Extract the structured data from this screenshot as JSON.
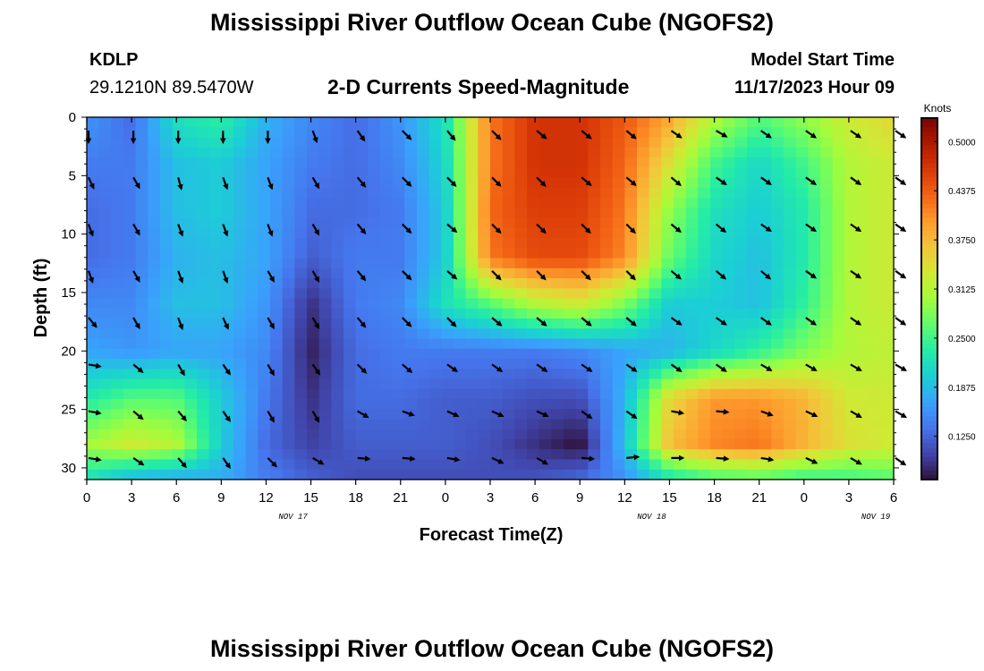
{
  "header": {
    "title": "Mississippi River Outflow Ocean Cube (NGOFS2)",
    "station": "KDLP",
    "coords": "29.1210N  89.5470W",
    "plot_title": "2-D Currents Speed-Magnitude",
    "model_start_label": "Model Start Time",
    "model_start_value": "11/17/2023 Hour 09"
  },
  "footer": {
    "title": "Mississippi River Outflow Ocean Cube (NGOFS2)"
  },
  "colors": {
    "colormap": [
      "#30123b",
      "#4145ab",
      "#4675ed",
      "#39a2fc",
      "#1bcfd4",
      "#24eca6",
      "#61fc6c",
      "#a4fc3b",
      "#d1e834",
      "#f3c63a",
      "#fe9b2d",
      "#f36315",
      "#d93806",
      "#b11901",
      "#7a0402"
    ]
  },
  "chart_data": {
    "type": "heatmap",
    "xlabel": "Forecast Time(Z)",
    "ylabel": "Depth (ft)",
    "colorbar_label": "Knots",
    "x_tick_labels": [
      "0",
      "3",
      "6",
      "9",
      "12",
      "15",
      "18",
      "21",
      "0",
      "3",
      "6",
      "9",
      "12",
      "15",
      "18",
      "21",
      "0",
      "3",
      "6"
    ],
    "x_range_hours": [
      0,
      54
    ],
    "date_labels": [
      {
        "hour": 15,
        "text": "NOV 17"
      },
      {
        "hour": 39,
        "text": "NOV 18"
      },
      {
        "hour": 54,
        "text": "NOV 19"
      }
    ],
    "ylim": [
      31,
      0
    ],
    "y_ticks": [
      0,
      5,
      10,
      15,
      20,
      25,
      30
    ],
    "colorbar_range": [
      0.07,
      0.53
    ],
    "colorbar_ticks": [
      "0.1250",
      "0.1875",
      "0.2500",
      "0.3125",
      "0.3750",
      "0.4375",
      "0.5000"
    ],
    "columns_hours": [
      0,
      3,
      6,
      9,
      12,
      15,
      18,
      21,
      24,
      27,
      30,
      33,
      36,
      39,
      42,
      45,
      48,
      51,
      54
    ],
    "rows_depth_ft": [
      0,
      4,
      8,
      12,
      16,
      20,
      24,
      28,
      30.5
    ],
    "values_knots": [
      [
        0.16,
        0.13,
        0.22,
        0.24,
        0.18,
        0.15,
        0.13,
        0.16,
        0.22,
        0.42,
        0.47,
        0.47,
        0.44,
        0.39,
        0.31,
        0.26,
        0.29,
        0.33,
        0.35
      ],
      [
        0.14,
        0.14,
        0.19,
        0.2,
        0.17,
        0.14,
        0.13,
        0.15,
        0.21,
        0.42,
        0.47,
        0.47,
        0.43,
        0.34,
        0.25,
        0.21,
        0.25,
        0.31,
        0.33
      ],
      [
        0.13,
        0.14,
        0.19,
        0.2,
        0.17,
        0.13,
        0.13,
        0.14,
        0.2,
        0.43,
        0.46,
        0.46,
        0.42,
        0.29,
        0.22,
        0.2,
        0.23,
        0.31,
        0.33
      ],
      [
        0.13,
        0.14,
        0.18,
        0.19,
        0.17,
        0.12,
        0.14,
        0.14,
        0.2,
        0.42,
        0.45,
        0.45,
        0.41,
        0.27,
        0.21,
        0.19,
        0.23,
        0.31,
        0.33
      ],
      [
        0.15,
        0.15,
        0.19,
        0.19,
        0.16,
        0.09,
        0.14,
        0.15,
        0.22,
        0.26,
        0.31,
        0.33,
        0.28,
        0.2,
        0.2,
        0.19,
        0.24,
        0.31,
        0.33
      ],
      [
        0.17,
        0.16,
        0.17,
        0.17,
        0.15,
        0.08,
        0.13,
        0.14,
        0.14,
        0.14,
        0.14,
        0.15,
        0.17,
        0.18,
        0.21,
        0.24,
        0.28,
        0.31,
        0.32
      ],
      [
        0.23,
        0.26,
        0.26,
        0.2,
        0.14,
        0.09,
        0.13,
        0.13,
        0.12,
        0.12,
        0.11,
        0.11,
        0.18,
        0.35,
        0.4,
        0.4,
        0.38,
        0.33,
        0.33
      ],
      [
        0.3,
        0.33,
        0.31,
        0.2,
        0.13,
        0.1,
        0.12,
        0.12,
        0.12,
        0.11,
        0.09,
        0.07,
        0.19,
        0.37,
        0.41,
        0.42,
        0.38,
        0.34,
        0.33
      ],
      [
        0.23,
        0.2,
        0.19,
        0.18,
        0.14,
        0.12,
        0.11,
        0.11,
        0.11,
        0.11,
        0.11,
        0.12,
        0.16,
        0.24,
        0.27,
        0.28,
        0.26,
        0.26,
        0.27
      ]
    ],
    "vector_depths_ft": [
      1,
      5,
      9,
      13,
      17,
      21,
      25,
      29
    ],
    "vector_directions_deg": [
      [
        180,
        180,
        180,
        180,
        180,
        160,
        145,
        135,
        140,
        135,
        130,
        130,
        130,
        125,
        120,
        125,
        125,
        125,
        125
      ],
      [
        155,
        150,
        165,
        160,
        160,
        150,
        140,
        135,
        135,
        135,
        135,
        130,
        130,
        130,
        125,
        125,
        125,
        125,
        125
      ],
      [
        160,
        150,
        160,
        160,
        160,
        150,
        140,
        135,
        130,
        135,
        135,
        135,
        135,
        130,
        130,
        125,
        125,
        125,
        125
      ],
      [
        160,
        150,
        160,
        160,
        150,
        150,
        140,
        135,
        130,
        135,
        135,
        135,
        135,
        130,
        130,
        130,
        125,
        125,
        125
      ],
      [
        140,
        150,
        160,
        155,
        150,
        150,
        140,
        135,
        135,
        130,
        130,
        130,
        130,
        125,
        125,
        125,
        125,
        125,
        125
      ],
      [
        100,
        130,
        150,
        145,
        150,
        145,
        135,
        130,
        125,
        125,
        125,
        125,
        125,
        125,
        125,
        120,
        120,
        120,
        120
      ],
      [
        100,
        130,
        140,
        145,
        150,
        150,
        120,
        110,
        115,
        115,
        115,
        125,
        125,
        100,
        95,
        110,
        115,
        120,
        120
      ],
      [
        100,
        125,
        140,
        145,
        135,
        120,
        95,
        95,
        100,
        115,
        120,
        95,
        85,
        90,
        95,
        100,
        115,
        120,
        125
      ]
    ]
  }
}
